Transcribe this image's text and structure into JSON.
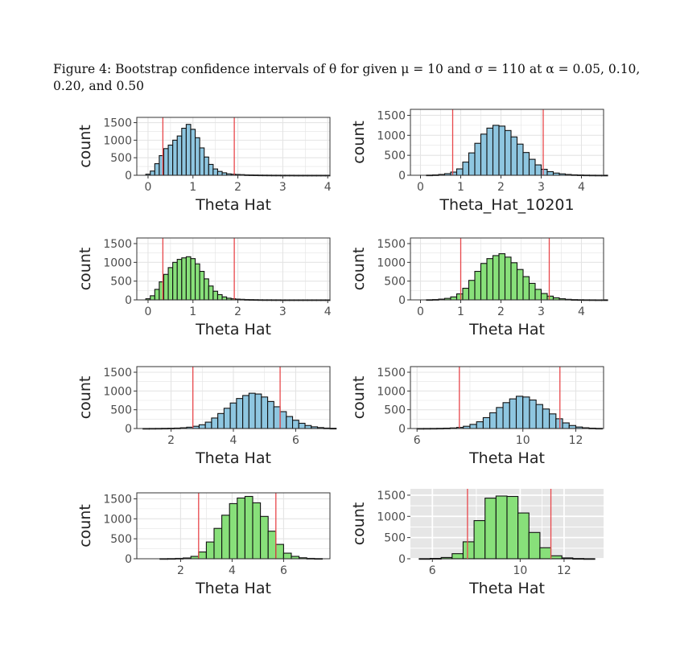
{
  "caption": "Figure 4: Bootstrap confidence intervals of θ for given μ = 10 and σ = 110 at α = 0.05, 0.10, 0.20, and 0.50",
  "colors": {
    "blue_fill": "#8ec6e0",
    "green_fill": "#88e07a",
    "ci_line": "#e8474b",
    "bar_stroke": "#111111",
    "grid": "#e4e4e4",
    "grey_panel": "#e6e6e6"
  },
  "chart_data": [
    {
      "type": "bar",
      "theme": "bw",
      "fill": "blue",
      "xlabel": "Theta Hat",
      "ylabel": "count",
      "xlim": [
        -0.25,
        4.05
      ],
      "ylim": [
        0,
        1650
      ],
      "xticks": [
        0,
        1,
        2,
        3,
        4
      ],
      "yticks": [
        0,
        500,
        1000,
        1500
      ],
      "ci_lines": [
        0.33,
        1.92
      ],
      "bin_start": -0.05,
      "bin_width": 0.1,
      "values": [
        30,
        120,
        330,
        560,
        760,
        860,
        1000,
        1120,
        1340,
        1450,
        1310,
        1070,
        780,
        520,
        310,
        180,
        110,
        70,
        40,
        30,
        22,
        18,
        12,
        10,
        8,
        6,
        5,
        4,
        3,
        3,
        2,
        2,
        2,
        1,
        1,
        1,
        1,
        1,
        1,
        1,
        1
      ]
    },
    {
      "type": "bar",
      "theme": "bw",
      "fill": "blue",
      "xlabel": "Theta_Hat_10201",
      "ylabel": "count",
      "xlim": [
        -0.25,
        4.55
      ],
      "ylim": [
        0,
        1650
      ],
      "xticks": [
        0,
        1,
        2,
        3,
        4
      ],
      "yticks": [
        0,
        500,
        1000,
        1500
      ],
      "ci_lines": [
        0.8,
        3.05
      ],
      "bin_start": 0.15,
      "bin_width": 0.15,
      "values": [
        5,
        10,
        20,
        40,
        80,
        160,
        330,
        560,
        800,
        1030,
        1180,
        1250,
        1230,
        1120,
        960,
        780,
        570,
        400,
        260,
        150,
        90,
        55,
        35,
        20,
        12,
        8,
        5,
        3,
        2,
        1
      ]
    },
    {
      "type": "bar",
      "theme": "bw",
      "fill": "green",
      "xlabel": "Theta Hat",
      "ylabel": "count",
      "xlim": [
        -0.25,
        4.05
      ],
      "ylim": [
        0,
        1650
      ],
      "xticks": [
        0,
        1,
        2,
        3,
        4
      ],
      "yticks": [
        0,
        500,
        1000,
        1500
      ],
      "ci_lines": [
        0.33,
        1.92
      ],
      "bin_start": -0.05,
      "bin_width": 0.1,
      "values": [
        30,
        110,
        280,
        480,
        680,
        860,
        1000,
        1080,
        1120,
        1150,
        1100,
        960,
        760,
        560,
        370,
        230,
        140,
        80,
        45,
        30,
        20,
        15,
        10,
        8,
        6,
        4,
        3,
        3,
        2,
        2,
        1,
        1,
        1,
        1,
        1,
        1,
        1,
        1,
        1,
        1,
        1
      ]
    },
    {
      "type": "bar",
      "theme": "bw",
      "fill": "green",
      "xlabel": "Theta Hat",
      "ylabel": "count",
      "xlim": [
        -0.25,
        4.55
      ],
      "ylim": [
        0,
        1650
      ],
      "xticks": [
        0,
        1,
        2,
        3,
        4
      ],
      "yticks": [
        0,
        500,
        1000,
        1500
      ],
      "ci_lines": [
        1.0,
        3.2
      ],
      "bin_start": 0.15,
      "bin_width": 0.15,
      "values": [
        5,
        10,
        20,
        40,
        80,
        160,
        310,
        520,
        760,
        970,
        1100,
        1180,
        1230,
        1140,
        990,
        810,
        620,
        440,
        280,
        170,
        100,
        55,
        30,
        15,
        8,
        5,
        3,
        2,
        1,
        1
      ]
    },
    {
      "type": "bar",
      "theme": "bw",
      "fill": "blue",
      "xlabel": "Theta Hat",
      "ylabel": "count",
      "xlim": [
        0.9,
        7.1
      ],
      "ylim": [
        0,
        1650
      ],
      "xticks": [
        2,
        4,
        6
      ],
      "yticks": [
        0,
        500,
        1000,
        1500
      ],
      "ci_lines": [
        2.7,
        5.5
      ],
      "bin_start": 1.1,
      "bin_width": 0.2,
      "values": [
        2,
        3,
        4,
        6,
        8,
        12,
        20,
        35,
        60,
        100,
        170,
        280,
        400,
        540,
        680,
        800,
        880,
        940,
        920,
        840,
        720,
        580,
        450,
        320,
        220,
        140,
        80,
        45,
        25,
        12,
        6
      ]
    },
    {
      "type": "bar",
      "theme": "bw",
      "fill": "blue",
      "xlabel": "Theta Hat",
      "ylabel": "count",
      "xlim": [
        5.75,
        13.05
      ],
      "ylim": [
        0,
        1650
      ],
      "xticks": [
        6,
        10,
        12
      ],
      "yticks": [
        0,
        500,
        1000,
        1500
      ],
      "ci_lines": [
        7.6,
        11.4
      ],
      "bin_start": 6.0,
      "bin_width": 0.25,
      "values": [
        2,
        3,
        4,
        6,
        10,
        16,
        30,
        60,
        110,
        180,
        290,
        420,
        560,
        690,
        790,
        860,
        840,
        760,
        640,
        520,
        390,
        260,
        150,
        80,
        40,
        20,
        10,
        5
      ]
    },
    {
      "type": "bar",
      "theme": "bw",
      "fill": "green",
      "xlabel": "Theta Hat",
      "ylabel": "count",
      "xlim": [
        0.3,
        7.8
      ],
      "ylim": [
        0,
        1650
      ],
      "xticks": [
        2,
        4,
        6
      ],
      "yticks": [
        0,
        500,
        1000,
        1500
      ],
      "ci_lines": [
        2.7,
        5.7
      ],
      "bin_start": 1.2,
      "bin_width": 0.3,
      "values": [
        3,
        5,
        10,
        20,
        60,
        170,
        420,
        760,
        1090,
        1380,
        1520,
        1560,
        1400,
        1060,
        690,
        360,
        140,
        60,
        25,
        10,
        5
      ]
    },
    {
      "type": "bar",
      "theme": "grey",
      "fill": "green",
      "xlabel": "Theta Hat",
      "ylabel": "count",
      "xlim": [
        5.0,
        13.8
      ],
      "ylim": [
        0,
        1650
      ],
      "xticks": [
        6,
        10,
        12
      ],
      "yticks": [
        0,
        500,
        1000,
        1500
      ],
      "ci_lines": [
        7.6,
        11.4
      ],
      "bin_start": 5.4,
      "bin_width": 0.5,
      "values": [
        3,
        8,
        30,
        120,
        400,
        900,
        1430,
        1480,
        1470,
        1080,
        620,
        260,
        70,
        20,
        6,
        2
      ]
    }
  ]
}
